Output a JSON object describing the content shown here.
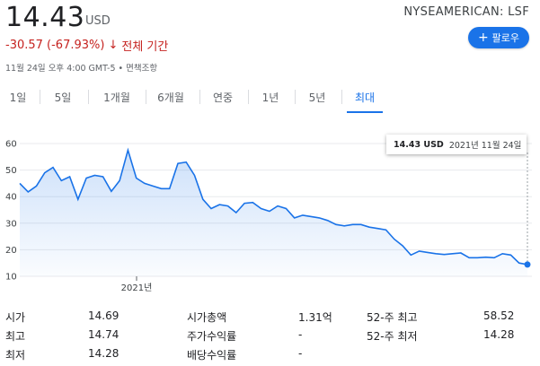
{
  "header": {
    "price": "14.43",
    "currency": "USD",
    "ticker": "NYSEAMERICAN: LSF",
    "change": "-30.57 (-67.93%)",
    "change_arrow": "↓",
    "period": "전체 기간",
    "meta": "11월 24일 오후 4:00 GMT-5 • 면책조항",
    "follow_label": "팔로우",
    "follow_icon": "+"
  },
  "tabs": [
    {
      "label": "1일"
    },
    {
      "label": "5일"
    },
    {
      "label": "1개월"
    },
    {
      "label": "6개월"
    },
    {
      "label": "연중"
    },
    {
      "label": "1년"
    },
    {
      "label": "5년"
    },
    {
      "label": "최대"
    }
  ],
  "active_tab": "최대",
  "tooltip": {
    "price": "14.43 USD",
    "date": "2021년 11월 24일"
  },
  "colors": {
    "accent": "#1a73e8",
    "negative": "#c5221f",
    "line": "#1a73e8"
  },
  "chart_data": {
    "type": "area",
    "y_ticks": [
      "60",
      "50",
      "40",
      "30",
      "20",
      "10"
    ],
    "ylim": [
      10,
      60
    ],
    "x_tick_label": "2021년",
    "grid": true,
    "values": [
      45.0,
      41.8,
      44.0,
      49.0,
      51.0,
      46.0,
      47.5,
      39.0,
      47.0,
      48.0,
      47.5,
      42.0,
      46.0,
      57.5,
      47.0,
      45.0,
      44.0,
      43.0,
      43.0,
      52.5,
      53.0,
      48.0,
      39.0,
      35.5,
      37.0,
      36.5,
      34.0,
      37.5,
      37.8,
      35.5,
      34.5,
      36.5,
      35.5,
      32.0,
      33.0,
      32.5,
      32.0,
      31.0,
      29.5,
      29.0,
      29.5,
      29.5,
      28.5,
      28.0,
      27.5,
      24.0,
      21.5,
      18.0,
      19.5,
      19.0,
      18.5,
      18.2,
      18.5,
      18.8,
      17.0,
      17.0,
      17.2,
      17.0,
      18.5,
      18.0,
      15.0,
      14.43
    ]
  },
  "stats": [
    {
      "label1": "시가",
      "value1": "14.69",
      "label2": "시가총액",
      "value2": "1.31억",
      "label3": "52-주 최고",
      "value3": "58.52"
    },
    {
      "label1": "최고",
      "value1": "14.74",
      "label2": "주가수익률",
      "value2": "-",
      "label3": "52-주 최저",
      "value3": "14.28"
    },
    {
      "label1": "최저",
      "value1": "14.28",
      "label2": "배당수익률",
      "value2": "-",
      "label3": "",
      "value3": ""
    }
  ]
}
